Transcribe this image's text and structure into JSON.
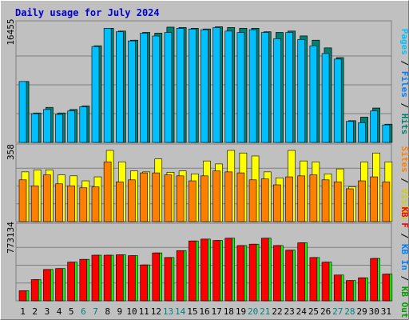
{
  "title": "Daily usage for July 2024",
  "colors": {
    "background": "#c0c0c0",
    "grid": "#808080",
    "border_dark": "#7a7a7a",
    "pages": "#00c0ff",
    "files": "#008070",
    "hits": "#00a060",
    "visits": "#ffff00",
    "sites": "#ff8000",
    "kb_in": "#00ff00",
    "kb_f": "#ff0000",
    "day_normal": "#000000",
    "day_weekend": "#008080",
    "title": "#0000cc"
  },
  "labels": {
    "pages": "Pages",
    "files": "Files",
    "hits": "Hits",
    "visits": "Visits",
    "sites": "Sites",
    "kb_f": "KB F",
    "kb_in": "KB In",
    "kb_out": "KB Out",
    "separator": " / "
  },
  "chart_data": [
    {
      "type": "bar",
      "name": "hits-files-pages",
      "ymax_label": "16455",
      "ylim": [
        0,
        16455
      ],
      "categories": [
        "1",
        "2",
        "3",
        "4",
        "5",
        "6",
        "7",
        "8",
        "9",
        "10",
        "11",
        "12",
        "13",
        "14",
        "15",
        "16",
        "17",
        "18",
        "19",
        "20",
        "21",
        "22",
        "23",
        "24",
        "25",
        "26",
        "27",
        "28",
        "29",
        "30",
        "31"
      ],
      "weekend_days": [
        6,
        7,
        13,
        14,
        20,
        21,
        27,
        28
      ],
      "series": [
        {
          "name": "Hits",
          "values": [
            8700,
            4200,
            5000,
            4200,
            4700,
            5200,
            13800,
            16300,
            15900,
            14600,
            15700,
            15600,
            16455,
            16400,
            16300,
            16200,
            16500,
            16400,
            16300,
            16300,
            15800,
            15700,
            15900,
            15200,
            14600,
            13500,
            12100,
            3100,
            3600,
            4900,
            2600
          ]
        },
        {
          "name": "Files",
          "values": [
            8700,
            4200,
            5000,
            4200,
            4700,
            5200,
            13800,
            16300,
            15900,
            14600,
            15700,
            15600,
            16455,
            16400,
            16300,
            16200,
            16500,
            16400,
            16300,
            16300,
            15800,
            15700,
            15900,
            15200,
            14600,
            13500,
            12100,
            3100,
            3600,
            4900,
            2600
          ]
        },
        {
          "name": "Pages",
          "values": [
            8700,
            4100,
            4700,
            4000,
            4500,
            5100,
            13700,
            16300,
            15800,
            14500,
            15600,
            15200,
            15700,
            16300,
            16200,
            16100,
            16400,
            15900,
            15700,
            16100,
            15700,
            14800,
            15700,
            14700,
            13800,
            12700,
            11900,
            3000,
            2800,
            4500,
            2500
          ]
        }
      ]
    },
    {
      "type": "bar",
      "name": "visits-sites",
      "ymax_label": "358",
      "ylim": [
        0,
        358
      ],
      "series": [
        {
          "name": "Visits",
          "values": [
            250,
            260,
            260,
            235,
            230,
            205,
            225,
            358,
            300,
            255,
            250,
            315,
            248,
            255,
            240,
            305,
            290,
            358,
            345,
            330,
            250,
            220,
            358,
            305,
            300,
            240,
            265,
            175,
            300,
            345,
            300
          ]
        },
        {
          "name": "Sites",
          "values": [
            210,
            180,
            235,
            190,
            180,
            170,
            175,
            300,
            200,
            210,
            245,
            245,
            235,
            230,
            205,
            230,
            255,
            250,
            245,
            210,
            215,
            185,
            225,
            230,
            235,
            210,
            200,
            165,
            205,
            225,
            200
          ]
        }
      ]
    },
    {
      "type": "bar",
      "name": "kbytes",
      "ymax_label": "773134",
      "ylim": [
        0,
        773134
      ],
      "series": [
        {
          "name": "KB In",
          "values": [
            110000,
            230000,
            340000,
            350000,
            420000,
            450000,
            495000,
            495000,
            500000,
            490000,
            390000,
            520000,
            470000,
            545000,
            650000,
            670000,
            655000,
            680000,
            600000,
            615000,
            680000,
            600000,
            550000,
            630000,
            470000,
            420000,
            280000,
            220000,
            250000,
            460000,
            290000
          ]
        },
        {
          "name": "KB F",
          "values": [
            110000,
            230000,
            340000,
            350000,
            420000,
            450000,
            495000,
            495000,
            500000,
            490000,
            390000,
            520000,
            470000,
            545000,
            650000,
            670000,
            655000,
            680000,
            600000,
            615000,
            680000,
            600000,
            550000,
            630000,
            470000,
            420000,
            280000,
            220000,
            250000,
            460000,
            290000
          ]
        }
      ]
    }
  ]
}
